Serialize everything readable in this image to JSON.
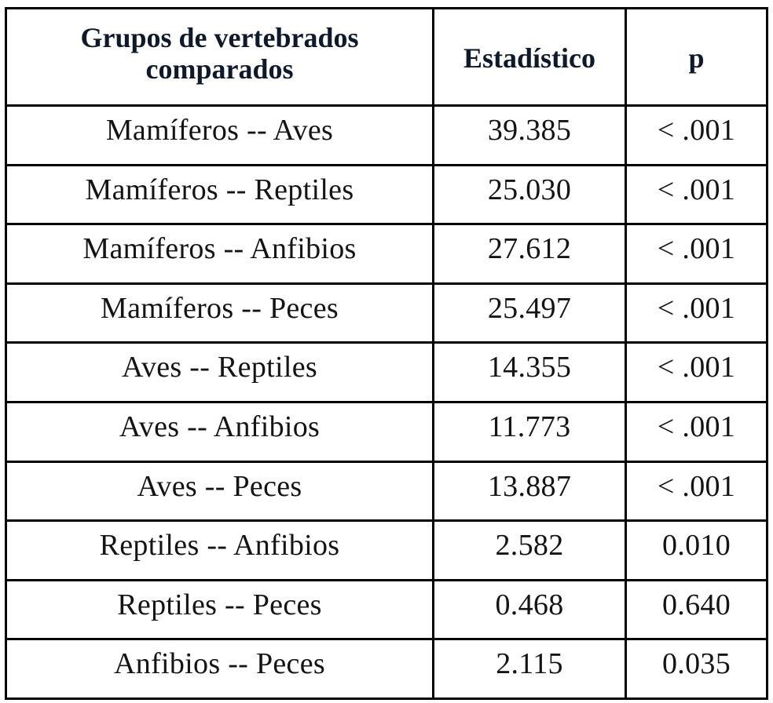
{
  "table": {
    "headers": {
      "groups": "Grupos de vertebrados comparados",
      "statistic": "Estadístico",
      "p": "p"
    },
    "rows": [
      {
        "groups": "Mamíferos -- Aves",
        "statistic": "39.385",
        "p": "< .001"
      },
      {
        "groups": "Mamíferos -- Reptiles",
        "statistic": "25.030",
        "p": "< .001"
      },
      {
        "groups": "Mamíferos -- Anfibios",
        "statistic": "27.612",
        "p": "< .001"
      },
      {
        "groups": "Mamíferos -- Peces",
        "statistic": "25.497",
        "p": "< .001"
      },
      {
        "groups": "Aves -- Reptiles",
        "statistic": "14.355",
        "p": "< .001"
      },
      {
        "groups": "Aves -- Anfibios",
        "statistic": "11.773",
        "p": "< .001"
      },
      {
        "groups": "Aves -- Peces",
        "statistic": "13.887",
        "p": "< .001"
      },
      {
        "groups": "Reptiles -- Anfibios",
        "statistic": "2.582",
        "p": "0.010"
      },
      {
        "groups": "Reptiles -- Peces",
        "statistic": "0.468",
        "p": "0.640"
      },
      {
        "groups": "Anfibios -- Peces",
        "statistic": "2.115",
        "p": "0.035"
      }
    ]
  }
}
